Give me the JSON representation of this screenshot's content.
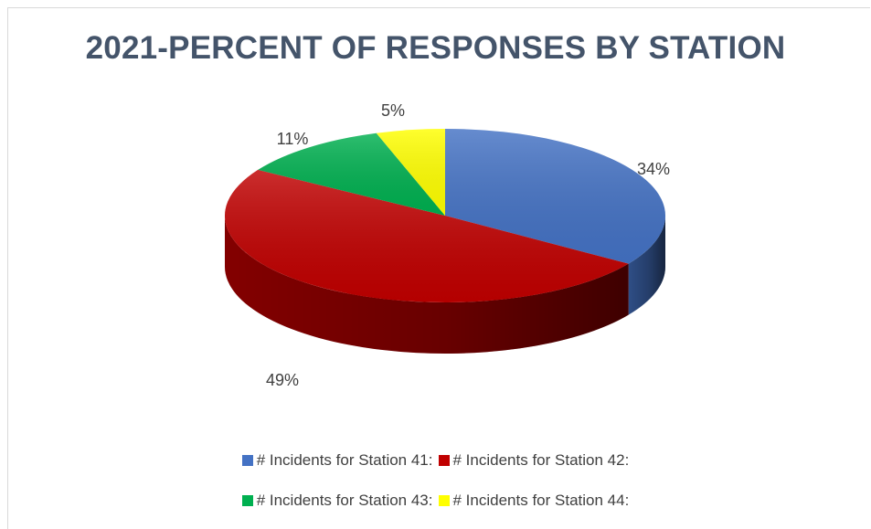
{
  "chart_data": {
    "type": "pie",
    "title": "2021-PERCENT OF RESPONSES BY STATION",
    "series": [
      {
        "name": "# Incidents for Station 41:",
        "value": 34,
        "label": "34%",
        "color": "#4472c4"
      },
      {
        "name": "# Incidents for Station 42:",
        "value": 49,
        "label": "49%",
        "color": "#c00000"
      },
      {
        "name": "# Incidents for Station 43:",
        "value": 11,
        "label": "11%",
        "color": "#00b050"
      },
      {
        "name": "# Incidents for Station 44:",
        "value": 5,
        "label": "5%",
        "color": "#ffff00"
      }
    ],
    "style": "3d-pie",
    "legend": "bottom"
  }
}
